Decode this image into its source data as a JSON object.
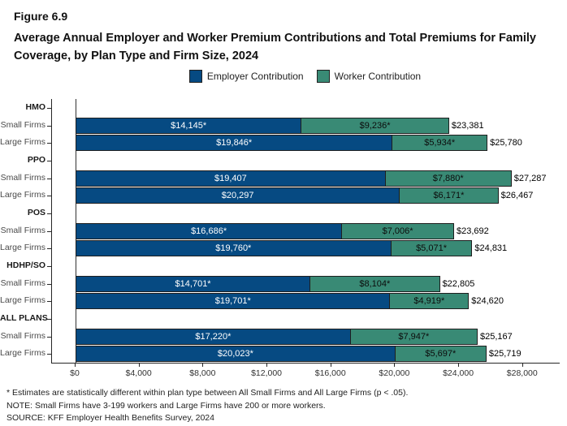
{
  "figure": {
    "label": "Figure 6.9",
    "title": "Average Annual Employer and Worker Premium Contributions and Total Premiums for Family Coverage, by Plan Type and Firm Size, 2024"
  },
  "legend": {
    "items": [
      {
        "name": "employer",
        "label": "Employer Contribution",
        "color": "#064A82"
      },
      {
        "name": "worker",
        "label": "Worker Contribution",
        "color": "#398A75"
      }
    ]
  },
  "colors": {
    "employer": "#064A82",
    "worker": "#398A75",
    "bar_border": "#1F1F1F",
    "axis": "#262626"
  },
  "chart_data": {
    "type": "bar",
    "orientation": "horizontal",
    "stacked": true,
    "title": "Average Annual Employer and Worker Premium Contributions and Total Premiums for Family Coverage, by Plan Type and Firm Size, 2024",
    "xlabel": "",
    "ylabel": "",
    "legend_position": "top-center",
    "grid": false,
    "series_names": [
      "Employer Contribution",
      "Worker Contribution"
    ],
    "axis_value_range": [
      -1475,
      30300
    ],
    "x_ticks": [
      {
        "value": 0,
        "label": "$0"
      },
      {
        "value": 4000,
        "label": "$4,000"
      },
      {
        "value": 8000,
        "label": "$8,000"
      },
      {
        "value": 12000,
        "label": "$12,000"
      },
      {
        "value": 16000,
        "label": "$16,000"
      },
      {
        "value": 20000,
        "label": "$20,000"
      },
      {
        "value": 24000,
        "label": "$24,000"
      },
      {
        "value": 28000,
        "label": "$28,000"
      }
    ],
    "groups": [
      {
        "label": "HMO",
        "rows": [
          {
            "label": "Small Firms",
            "employer_value": 14145,
            "worker_value": 9236,
            "total_value": 23381,
            "employer_label": "$14,145*",
            "worker_label": "$9,236*",
            "total_label": "$23,381"
          },
          {
            "label": "Large Firms",
            "employer_value": 19846,
            "worker_value": 5934,
            "total_value": 25780,
            "employer_label": "$19,846*",
            "worker_label": "$5,934*",
            "total_label": "$25,780"
          }
        ]
      },
      {
        "label": "PPO",
        "rows": [
          {
            "label": "Small Firms",
            "employer_value": 19407,
            "worker_value": 7880,
            "total_value": 27287,
            "employer_label": "$19,407",
            "worker_label": "$7,880*",
            "total_label": "$27,287"
          },
          {
            "label": "Large Firms",
            "employer_value": 20297,
            "worker_value": 6171,
            "total_value": 26467,
            "employer_label": "$20,297",
            "worker_label": "$6,171*",
            "total_label": "$26,467"
          }
        ]
      },
      {
        "label": "POS",
        "rows": [
          {
            "label": "Small Firms",
            "employer_value": 16686,
            "worker_value": 7006,
            "total_value": 23692,
            "employer_label": "$16,686*",
            "worker_label": "$7,006*",
            "total_label": "$23,692"
          },
          {
            "label": "Large Firms",
            "employer_value": 19760,
            "worker_value": 5071,
            "total_value": 24831,
            "employer_label": "$19,760*",
            "worker_label": "$5,071*",
            "total_label": "$24,831"
          }
        ]
      },
      {
        "label": "HDHP/SO",
        "rows": [
          {
            "label": "Small Firms",
            "employer_value": 14701,
            "worker_value": 8104,
            "total_value": 22805,
            "employer_label": "$14,701*",
            "worker_label": "$8,104*",
            "total_label": "$22,805"
          },
          {
            "label": "Large Firms",
            "employer_value": 19701,
            "worker_value": 4919,
            "total_value": 24620,
            "employer_label": "$19,701*",
            "worker_label": "$4,919*",
            "total_label": "$24,620"
          }
        ]
      },
      {
        "label": "ALL PLANS",
        "rows": [
          {
            "label": "Small Firms",
            "employer_value": 17220,
            "worker_value": 7947,
            "total_value": 25167,
            "employer_label": "$17,220*",
            "worker_label": "$7,947*",
            "total_label": "$25,167"
          },
          {
            "label": "Large Firms",
            "employer_value": 20023,
            "worker_value": 5697,
            "total_value": 25719,
            "employer_label": "$20,023*",
            "worker_label": "$5,697*",
            "total_label": "$25,719"
          }
        ]
      }
    ]
  },
  "footnotes": [
    "* Estimates are statistically different within plan type between All Small Firms and All Large Firms (p < .05).",
    "NOTE: Small Firms have 3-199 workers and Large Firms have 200 or more workers.",
    "SOURCE: KFF Employer Health Benefits Survey, 2024"
  ]
}
